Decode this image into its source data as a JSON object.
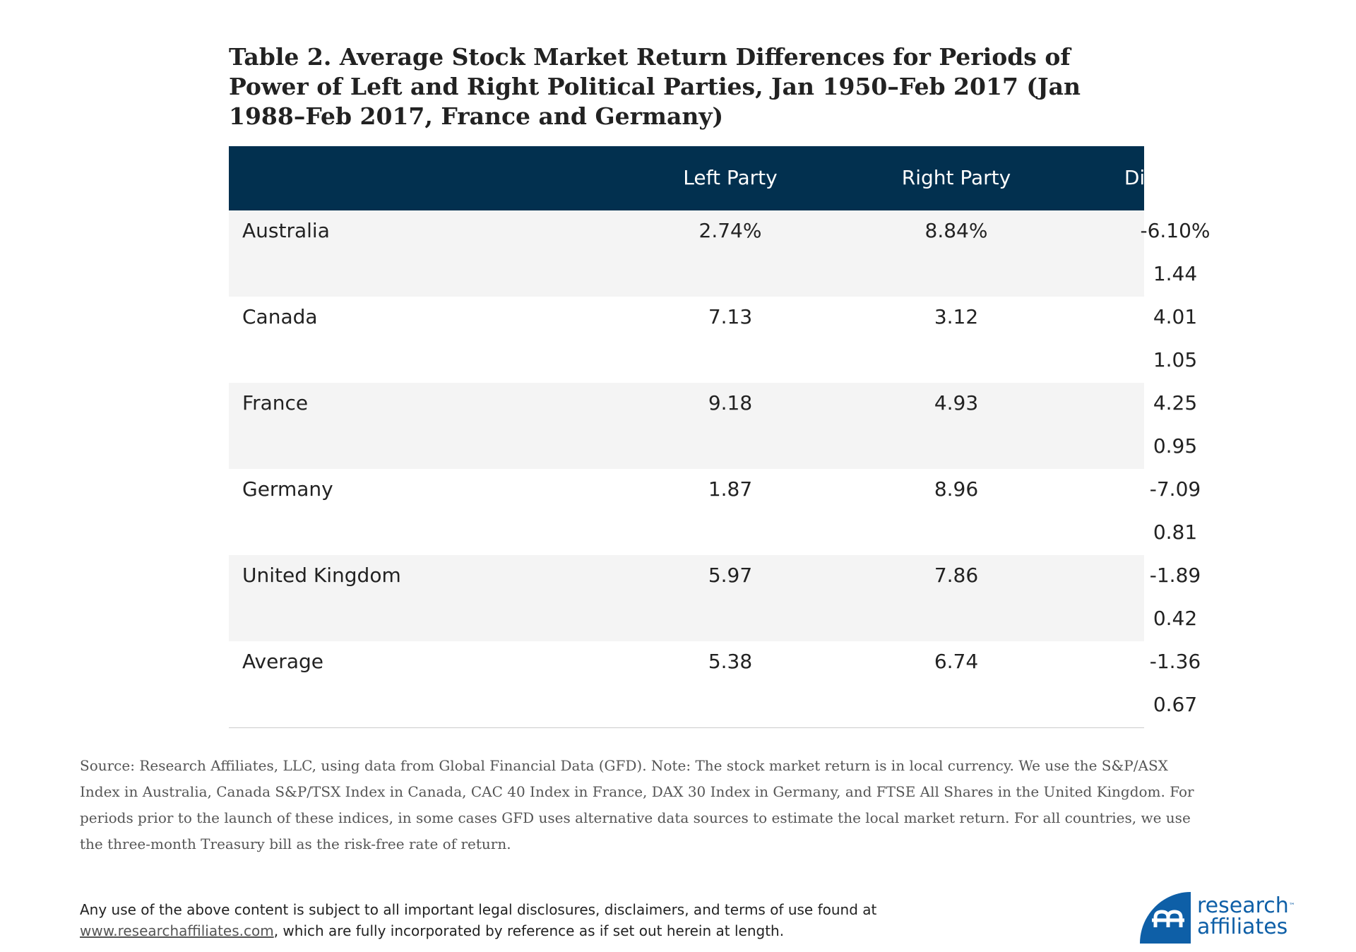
{
  "title": "Table 2. Average Stock Market Return Differences for Periods of Power of Left and Right Political Parties, Jan 1950–Feb 2017 (Jan 1988–Feb 2017, France and Germany)",
  "table": {
    "headers": [
      "",
      "Left Party",
      "Right Party",
      "Difference"
    ],
    "rows": [
      {
        "country": "Australia",
        "left": "2.74%",
        "right": "8.84%",
        "difference": "-6.10%",
        "tstat": "1.44"
      },
      {
        "country": "Canada",
        "left": "7.13",
        "right": "3.12",
        "difference": "4.01",
        "tstat": "1.05"
      },
      {
        "country": "France",
        "left": "9.18",
        "right": "4.93",
        "difference": "4.25",
        "tstat": "0.95"
      },
      {
        "country": "Germany",
        "left": "1.87",
        "right": "8.96",
        "difference": "-7.09",
        "tstat": "0.81"
      },
      {
        "country": "United Kingdom",
        "left": "5.97",
        "right": "7.86",
        "difference": "-1.89",
        "tstat": "0.42"
      },
      {
        "country": "Average",
        "left": "5.38",
        "right": "6.74",
        "difference": "-1.36",
        "tstat": "0.67"
      }
    ]
  },
  "note": "Source: Research Affiliates, LLC, using data from Global Financial Data (GFD). Note: The stock market return is in local currency. We use the S&P/ASX Index in Australia, Canada S&P/TSX Index in Canada, CAC 40 Index in France, DAX 30 Index in Germany, and FTSE All Shares in the United Kingdom. For periods prior to the launch of these indices, in some cases GFD uses alternative data sources to estimate the local market return. For all countries, we use the three-month Treasury bill as the risk-free rate of return.",
  "disclaimer": {
    "line1": "Any use of the above content is subject to all important legal disclosures, disclaimers, and terms of use found at",
    "link": "www.researchaffiliates.com",
    "line2": ", which are fully incorporated by reference as if set out herein at length."
  },
  "logo": {
    "line1": "research",
    "line2": "affiliates",
    "tm": "™",
    "color": "#0e5fa7"
  },
  "colors": {
    "header_bg": "#02304f",
    "row_shade": "#f4f4f4"
  }
}
